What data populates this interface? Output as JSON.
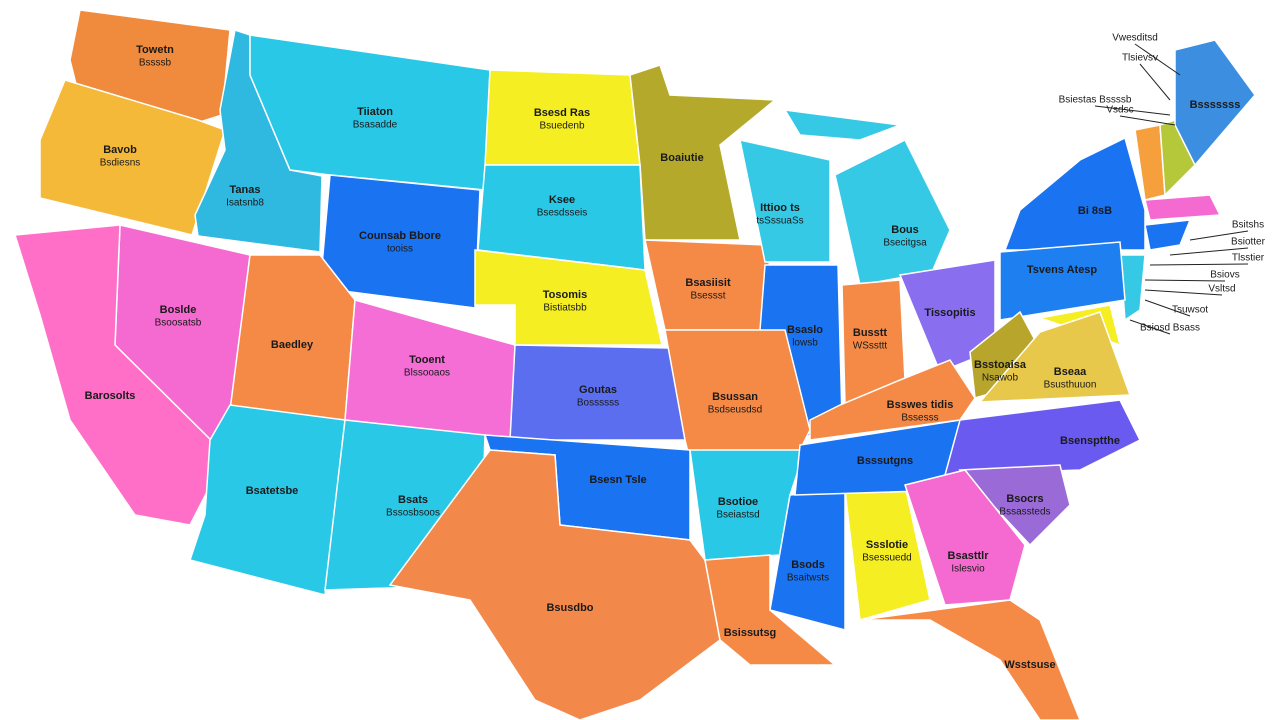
{
  "map": {
    "regions": [
      {
        "label": [
          "Towetn",
          "Bssssb"
        ]
      },
      {
        "label": [
          "Bavob",
          "Bsdiesns"
        ]
      },
      {
        "label": [
          "Tanas",
          "Isatsnb8"
        ]
      },
      {
        "label": [
          "Tiiaton",
          "Bsasadde"
        ]
      },
      {
        "label": [
          "Bsesd Ras",
          "Bsuedenb"
        ]
      },
      {
        "label": [
          "Boaiutie"
        ]
      },
      {
        "label": [
          "Counsab Bbore",
          "tooiss"
        ]
      },
      {
        "label": [
          "Ksee",
          "Bsesdsseis"
        ]
      },
      {
        "label": [
          "Tosomis",
          "Bistiatsbb"
        ]
      },
      {
        "label": [
          "Bsasiisit",
          "Bsessst"
        ]
      },
      {
        "label": [
          "Ittioo ts",
          "tsSssuaSs"
        ]
      },
      {
        "label": [
          "Bous",
          "Bsecitgsa"
        ]
      },
      {
        "label": [
          "Bsaslo",
          "lowsb"
        ]
      },
      {
        "label": [
          "Busstt",
          "WSssttt"
        ]
      },
      {
        "label": [
          "Tissopitis"
        ]
      },
      {
        "label": [
          "Bi 8sB"
        ]
      },
      {
        "label": [
          "Tsvens Atesp"
        ]
      },
      {
        "label": [
          "Bsssssss"
        ]
      },
      {
        "label": [
          "Bsstoaisa",
          "Nsawob"
        ]
      },
      {
        "label": [
          "Bseaa",
          "Bsusthuuon"
        ]
      },
      {
        "label": [
          "Boslde",
          "Bsoosatsb"
        ]
      },
      {
        "label": [
          "Barosolts"
        ]
      },
      {
        "label": [
          "Baedley"
        ]
      },
      {
        "label": [
          "Tooent",
          "Blssooaos"
        ]
      },
      {
        "label": [
          "Bsatetsbe"
        ]
      },
      {
        "label": [
          "Bsats",
          "Bssosbsoos"
        ]
      },
      {
        "label": [
          "Goutas",
          "Bossssss"
        ]
      },
      {
        "label": [
          "Bsussan",
          "Bsdseusdsd"
        ]
      },
      {
        "label": [
          "Bsesn Tsle"
        ]
      },
      {
        "label": [
          "Bsusdbo"
        ]
      },
      {
        "label": [
          "Bsotioe",
          "Bseiastsd"
        ]
      },
      {
        "label": [
          "Bsissutsg"
        ]
      },
      {
        "label": [
          "Bsods",
          "Bsaitwsts"
        ]
      },
      {
        "label": [
          "Ssslotie",
          "Bsessuedd"
        ]
      },
      {
        "label": [
          "Bsssutgns"
        ]
      },
      {
        "label": [
          "Bsswes tidis",
          "Bssesss"
        ]
      },
      {
        "label": [
          "Bsensptthe"
        ]
      },
      {
        "label": [
          "Bsocrs",
          "Bssassteds"
        ]
      },
      {
        "label": [
          "Bsasttlr",
          "Islesvio"
        ]
      },
      {
        "label": [
          "Wsstsuse"
        ]
      }
    ],
    "callouts": [
      "Vwesditsd",
      "Tlsievsv",
      "Bsiestas Bssssb",
      "Vsdsc",
      "Bsitshs",
      "Bsiotter",
      "Tlsstier",
      "Bsiovs",
      "Vsltsd",
      "Tsuwsot",
      "Bsiosd Bsass"
    ]
  }
}
